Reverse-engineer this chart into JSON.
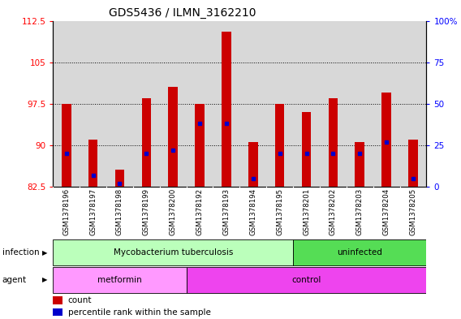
{
  "title": "GDS5436 / ILMN_3162210",
  "samples": [
    "GSM1378196",
    "GSM1378197",
    "GSM1378198",
    "GSM1378199",
    "GSM1378200",
    "GSM1378192",
    "GSM1378193",
    "GSM1378194",
    "GSM1378195",
    "GSM1378201",
    "GSM1378202",
    "GSM1378203",
    "GSM1378204",
    "GSM1378205"
  ],
  "counts": [
    97.5,
    91.0,
    85.5,
    98.5,
    100.5,
    97.5,
    110.5,
    90.5,
    97.5,
    96.0,
    98.5,
    90.5,
    99.5,
    91.0
  ],
  "percentile_ranks": [
    20,
    7,
    2,
    20,
    22,
    38,
    38,
    5,
    20,
    20,
    20,
    20,
    27,
    5
  ],
  "y_min": 82.5,
  "y_max": 112.5,
  "y_ticks": [
    82.5,
    90,
    97.5,
    105,
    112.5
  ],
  "right_y_ticks": [
    0,
    25,
    50,
    75,
    100
  ],
  "bar_color": "#cc0000",
  "dot_color": "#0000cc",
  "bar_bottom": 82.5,
  "infection_groups": [
    {
      "label": "Mycobacterium tuberculosis",
      "start": 0,
      "end": 9,
      "color": "#bbffbb"
    },
    {
      "label": "uninfected",
      "start": 9,
      "end": 14,
      "color": "#55dd55"
    }
  ],
  "agent_groups": [
    {
      "label": "metformin",
      "start": 0,
      "end": 5,
      "color": "#ff99ff"
    },
    {
      "label": "control",
      "start": 5,
      "end": 14,
      "color": "#ee44ee"
    }
  ],
  "infection_row_label": "infection",
  "agent_row_label": "agent",
  "legend_count_label": "count",
  "legend_pct_label": "percentile rank within the sample",
  "bg_color": "#ffffff",
  "plot_bg_color": "#d8d8d8",
  "title_fontsize": 10,
  "tick_fontsize": 7.5,
  "label_fontsize": 8,
  "bar_width": 0.35
}
